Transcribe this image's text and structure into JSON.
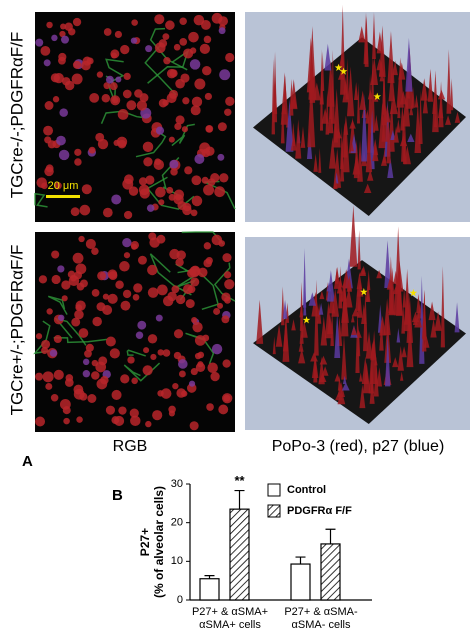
{
  "panel_a": {
    "label": "A",
    "rows": [
      "TGCre-/-;PDGFRαF/F",
      "TGCre+/-;PDGFRαF/F"
    ],
    "columns": [
      "RGB",
      "PoPo-3 (red), p27 (blue)"
    ],
    "scale_bar": "20 μm"
  },
  "panel_b": {
    "label": "B"
  },
  "chart_data": {
    "type": "bar",
    "ylabel": [
      "P27+",
      "(% of alveolar cells)"
    ],
    "categories": [
      [
        "P27+ & αSMA+",
        "αSMA+ cells"
      ],
      [
        "P27+ & αSMA-",
        "αSMA- cells"
      ]
    ],
    "series": [
      {
        "name": "Control",
        "color": "#ffffff",
        "values": [
          5.5,
          9.3
        ],
        "errors": [
          0.8,
          1.8
        ]
      },
      {
        "name": "PDGFRα F/F",
        "color": "hatch",
        "values": [
          23.5,
          14.5
        ],
        "errors": [
          4.8,
          3.8
        ]
      }
    ],
    "annotation": "**",
    "ylim": [
      0,
      30
    ],
    "yticks": [
      0,
      10,
      20,
      30
    ]
  }
}
